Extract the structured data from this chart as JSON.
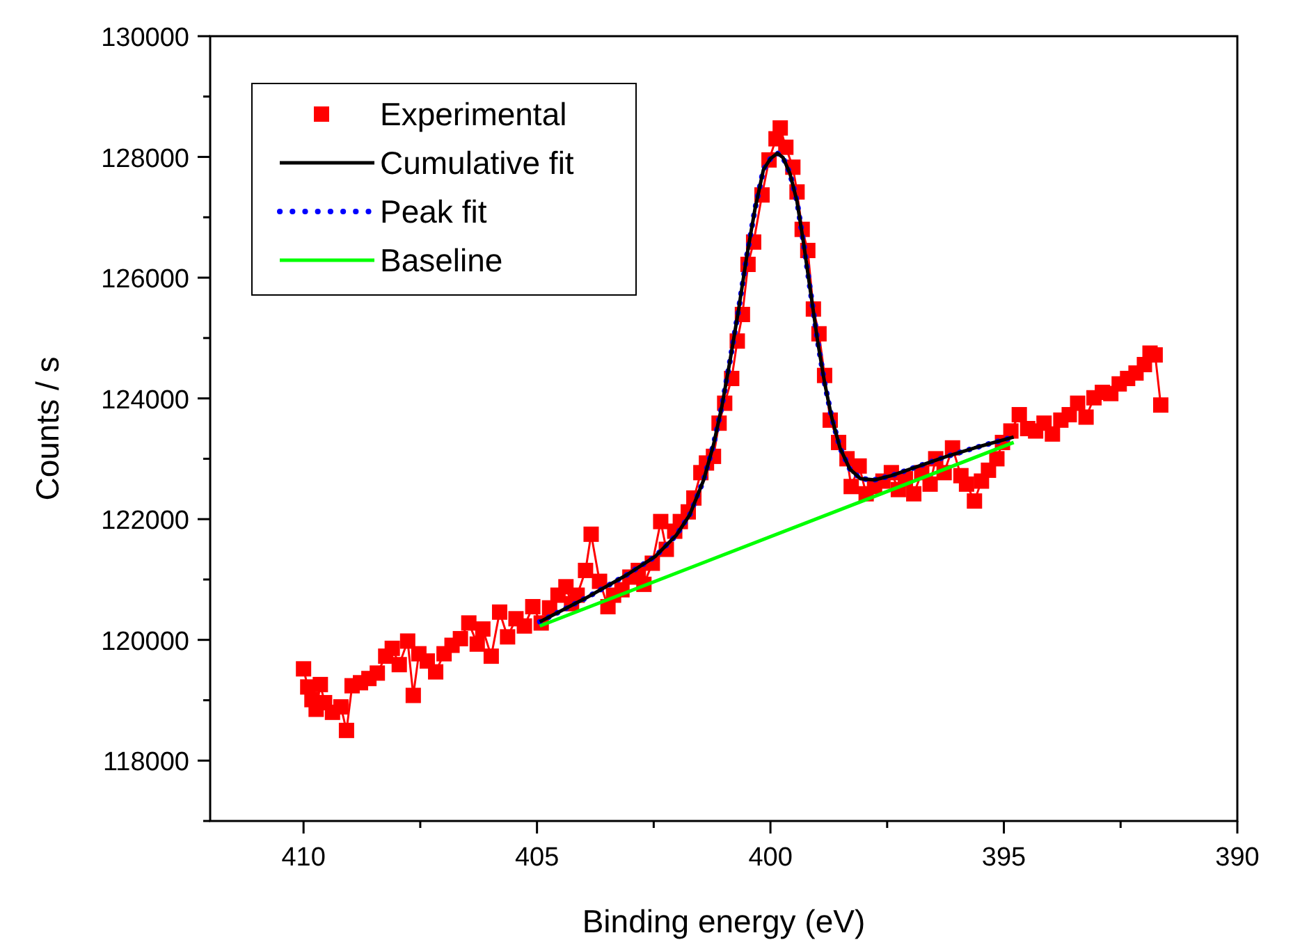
{
  "chart_data": {
    "type": "line",
    "xlabel": "Binding energy (eV)",
    "ylabel": "Counts / s",
    "xlim": [
      412,
      390
    ],
    "ylim": [
      117000,
      130000
    ],
    "xticks": [
      410,
      {
        "value": 407.5,
        "label": null
      },
      405,
      {
        "value": 402.5,
        "label": null
      },
      400,
      {
        "value": 397.5,
        "label": null
      },
      395,
      {
        "value": 392.5,
        "label": null
      },
      390
    ],
    "yticks": [
      {
        "value": 117000,
        "label": null
      },
      118000,
      {
        "value": 119000,
        "label": null
      },
      120000,
      {
        "value": 121000,
        "label": null
      },
      122000,
      {
        "value": 123000,
        "label": null
      },
      124000,
      {
        "value": 125000,
        "label": null
      },
      126000,
      {
        "value": 127000,
        "label": null
      },
      128000,
      {
        "value": 129000,
        "label": null
      },
      130000
    ],
    "grid": false,
    "legend": "top left",
    "series": [
      {
        "name": "Experimental",
        "marker": "square",
        "line_style": "solid",
        "color": "#ff0000",
        "x": [
          410.0,
          409.91,
          409.82,
          409.73,
          409.64,
          409.55,
          409.38,
          409.2,
          409.08,
          408.96,
          408.78,
          408.6,
          408.42,
          408.24,
          408.1,
          407.95,
          407.77,
          407.65,
          407.53,
          407.35,
          407.17,
          406.99,
          406.82,
          406.64,
          406.46,
          406.28,
          406.16,
          405.98,
          405.8,
          405.63,
          405.45,
          405.27,
          405.09,
          404.91,
          404.73,
          404.55,
          404.38,
          404.26,
          404.14,
          403.96,
          403.84,
          403.66,
          403.48,
          403.36,
          403.18,
          403.01,
          402.83,
          402.71,
          402.53,
          402.35,
          402.23,
          402.05,
          401.93,
          401.76,
          401.64,
          401.49,
          401.37,
          401.22,
          401.1,
          400.98,
          400.83,
          400.71,
          400.6,
          400.48,
          400.36,
          400.18,
          400.03,
          399.88,
          399.79,
          399.67,
          399.52,
          399.43,
          399.32,
          399.2,
          399.08,
          398.96,
          398.84,
          398.72,
          398.54,
          398.36,
          398.27,
          398.1,
          397.95,
          397.77,
          397.59,
          397.41,
          397.26,
          397.11,
          396.93,
          396.76,
          396.58,
          396.46,
          396.28,
          396.1,
          395.92,
          395.8,
          395.63,
          395.48,
          395.33,
          395.15,
          395.03,
          394.85,
          394.67,
          394.49,
          394.32,
          394.14,
          393.96,
          393.78,
          393.6,
          393.42,
          393.24,
          393.07,
          392.89,
          392.71,
          392.53,
          392.35,
          392.17,
          391.99,
          391.87,
          391.76,
          391.64
        ],
        "values": [
          119520,
          119220,
          119010,
          118850,
          119260,
          118960,
          118800,
          118890,
          118500,
          119240,
          119290,
          119360,
          119450,
          119730,
          119860,
          119590,
          119980,
          119080,
          119770,
          119650,
          119470,
          119770,
          119910,
          120020,
          120280,
          119930,
          120180,
          119730,
          120460,
          120050,
          120350,
          120230,
          120550,
          120280,
          120530,
          120740,
          120880,
          120600,
          120740,
          121150,
          121750,
          120970,
          120550,
          120740,
          120830,
          121040,
          121150,
          120920,
          121270,
          121960,
          121500,
          121800,
          121960,
          122120,
          122350,
          122770,
          122930,
          123040,
          123590,
          123920,
          124330,
          124950,
          125390,
          126220,
          126590,
          127370,
          127950,
          128300,
          128480,
          128160,
          127830,
          127420,
          126800,
          126450,
          125480,
          125070,
          124380,
          123640,
          123270,
          123000,
          122540,
          122880,
          122420,
          122540,
          122630,
          122770,
          122490,
          122670,
          122420,
          122770,
          122580,
          123000,
          122770,
          123180,
          122720,
          122580,
          122300,
          122630,
          122810,
          123000,
          123270,
          123460,
          123730,
          123500,
          123460,
          123590,
          123410,
          123640,
          123730,
          123920,
          123690,
          124010,
          124100,
          124080,
          124240,
          124330,
          124420,
          124560,
          124750,
          124720,
          123890
        ]
      },
      {
        "name": "Cumulative fit",
        "marker": "none",
        "line_style": "solid",
        "color": "#000000",
        "x": [
          404.94,
          403.96,
          403.07,
          402.47,
          402.02,
          401.73,
          401.43,
          401.22,
          401.04,
          400.86,
          400.68,
          400.51,
          400.33,
          400.15,
          400.0,
          399.85,
          399.73,
          399.58,
          399.43,
          399.29,
          399.14,
          398.99,
          398.84,
          398.69,
          398.51,
          398.3,
          398.07,
          397.77,
          397.41,
          396.82,
          396.22,
          395.63,
          394.79
        ],
        "values": [
          120300,
          120690,
          121080,
          121380,
          121730,
          122070,
          122650,
          123230,
          123870,
          124650,
          125480,
          126340,
          127140,
          127790,
          127970,
          128060,
          127990,
          127720,
          127260,
          126570,
          125760,
          124950,
          124260,
          123690,
          123180,
          122830,
          122670,
          122650,
          122720,
          122880,
          123040,
          123180,
          123360
        ]
      },
      {
        "name": "Peak fit",
        "marker": "none",
        "line_style": "dotted",
        "color": "#0000ff",
        "x": [
          404.94,
          403.96,
          403.07,
          402.47,
          402.02,
          401.73,
          401.43,
          401.22,
          401.04,
          400.86,
          400.68,
          400.51,
          400.33,
          400.15,
          400.0,
          399.85,
          399.73,
          399.58,
          399.43,
          399.29,
          399.14,
          398.99,
          398.84,
          398.69,
          398.51,
          398.3,
          398.07,
          397.77,
          397.41,
          396.82,
          396.22,
          395.63,
          394.79
        ],
        "values": [
          120300,
          120690,
          121080,
          121380,
          121730,
          122070,
          122650,
          123230,
          123870,
          124650,
          125480,
          126340,
          127140,
          127790,
          127970,
          128060,
          127990,
          127720,
          127260,
          126570,
          125760,
          124950,
          124260,
          123690,
          123180,
          122830,
          122670,
          122650,
          122720,
          122880,
          123040,
          123180,
          123360
        ]
      },
      {
        "name": "Baseline",
        "marker": "none",
        "line_style": "solid",
        "color": "#00ff00",
        "x": [
          404.94,
          394.79
        ],
        "values": [
          120230,
          123270
        ]
      }
    ]
  }
}
